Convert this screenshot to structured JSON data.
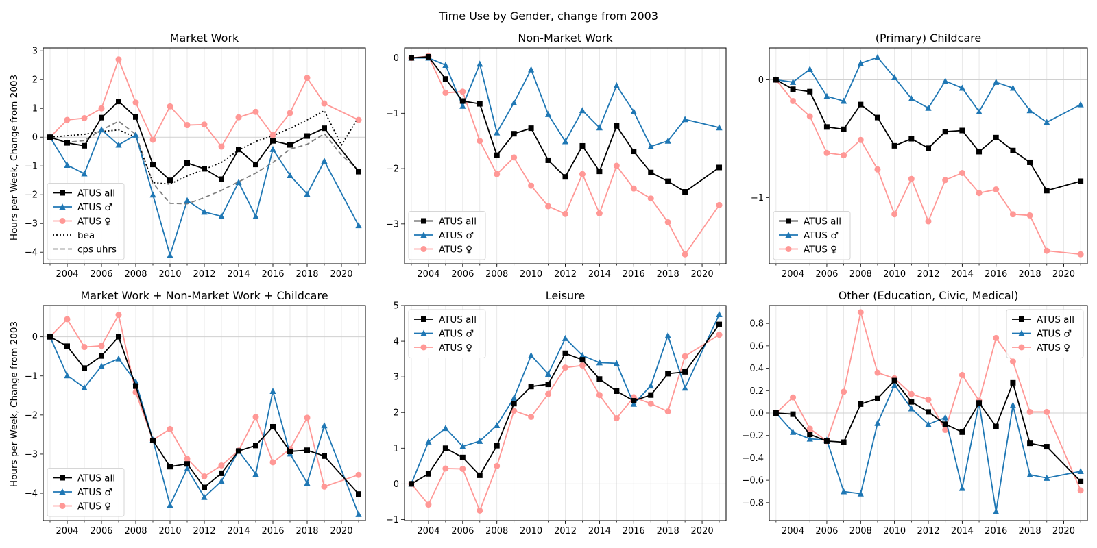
{
  "suptitle": "Time Use by Gender, change from 2003",
  "ylabel": "Hours per Week, Change from 2003",
  "colors": {
    "all": "#000000",
    "men": "#1f77b4",
    "women": "#ff9896",
    "bea": "#000000",
    "cps": "#7f7f7f"
  },
  "chart_data": [
    {
      "type": "line",
      "title": "Market Work",
      "xlim": [
        2002.6,
        2021.4
      ],
      "ylim": [
        -4.4,
        3.1
      ],
      "xticks": [
        2004,
        2006,
        2008,
        2010,
        2012,
        2014,
        2016,
        2018,
        2020
      ],
      "yticks": [
        -4,
        -3,
        -2,
        -1,
        0,
        1,
        2,
        3
      ],
      "legend": "lower-left",
      "x": [
        2003,
        2004,
        2005,
        2006,
        2007,
        2008,
        2009,
        2010,
        2011,
        2012,
        2013,
        2014,
        2015,
        2016,
        2017,
        2018,
        2019,
        2021
      ],
      "series": [
        {
          "name": "ATUS all",
          "style": "all",
          "values": [
            0,
            -0.2,
            -0.3,
            0.68,
            1.24,
            0.7,
            -0.95,
            -1.5,
            -0.9,
            -1.1,
            -1.46,
            -0.43,
            -0.95,
            -0.13,
            -0.27,
            0.04,
            0.31,
            -1.2
          ]
        },
        {
          "name": "ATUS ♂",
          "style": "men",
          "values": [
            0,
            -0.97,
            -1.27,
            0.26,
            -0.27,
            0.08,
            -2.0,
            -4.1,
            -2.2,
            -2.6,
            -2.75,
            -1.57,
            -2.75,
            -0.42,
            -1.33,
            -1.98,
            -0.83,
            -3.07
          ]
        },
        {
          "name": "ATUS ♀",
          "style": "women",
          "values": [
            0,
            0.6,
            0.66,
            1.0,
            2.7,
            1.2,
            -0.09,
            1.07,
            0.42,
            0.44,
            -0.33,
            0.69,
            0.88,
            0.07,
            0.84,
            2.06,
            1.17,
            0.6
          ]
        },
        {
          "name": "bea",
          "style": "bea",
          "x": [
            2003,
            2004,
            2005,
            2006,
            2007,
            2008,
            2009,
            2010,
            2011,
            2012,
            2013,
            2014,
            2015,
            2016,
            2017,
            2018,
            2019,
            2020,
            2021
          ],
          "values": [
            0,
            0.05,
            0.1,
            0.2,
            0.25,
            0.0,
            -1.58,
            -1.63,
            -1.35,
            -1.12,
            -0.88,
            -0.45,
            -0.15,
            0.05,
            0.3,
            0.6,
            0.92,
            -0.28,
            0.7
          ]
        },
        {
          "name": "cps uhrs",
          "style": "cps",
          "x": [
            2003,
            2004,
            2005,
            2006,
            2007,
            2008,
            2009,
            2010,
            2011,
            2012,
            2013,
            2014,
            2015,
            2016,
            2017,
            2018,
            2019,
            2020,
            2021
          ],
          "values": [
            0,
            -0.18,
            -0.12,
            0.25,
            0.55,
            0.1,
            -1.6,
            -2.3,
            -2.32,
            -2.1,
            -1.85,
            -1.55,
            -1.25,
            -0.88,
            -0.42,
            -0.25,
            0.12,
            -0.62,
            -1.15
          ]
        }
      ]
    },
    {
      "type": "line",
      "title": "Non-Market Work",
      "xlim": [
        2002.6,
        2021.4
      ],
      "ylim": [
        -3.72,
        0.18
      ],
      "xticks": [
        2004,
        2006,
        2008,
        2010,
        2012,
        2014,
        2016,
        2018,
        2020
      ],
      "yticks": [
        -3,
        -2,
        -1,
        0
      ],
      "legend": "lower-left",
      "x": [
        2003,
        2004,
        2005,
        2006,
        2007,
        2008,
        2009,
        2010,
        2011,
        2012,
        2013,
        2014,
        2015,
        2016,
        2017,
        2018,
        2019,
        2021
      ],
      "series": [
        {
          "name": "ATUS all",
          "style": "all",
          "values": [
            0,
            0.02,
            -0.38,
            -0.78,
            -0.83,
            -1.76,
            -1.37,
            -1.27,
            -1.85,
            -2.15,
            -1.59,
            -2.05,
            -1.23,
            -1.69,
            -2.07,
            -2.23,
            -2.42,
            -1.98
          ]
        },
        {
          "name": "ATUS ♂",
          "style": "men",
          "values": [
            0,
            0.0,
            -0.13,
            -0.87,
            -0.11,
            -1.35,
            -0.81,
            -0.21,
            -1.02,
            -1.51,
            -0.95,
            -1.26,
            -0.5,
            -0.97,
            -1.6,
            -1.5,
            -1.11,
            -1.26
          ]
        },
        {
          "name": "ATUS ♀",
          "style": "women",
          "values": [
            0,
            0.03,
            -0.63,
            -0.61,
            -1.5,
            -2.1,
            -1.8,
            -2.31,
            -2.68,
            -2.82,
            -2.1,
            -2.81,
            -1.95,
            -2.36,
            -2.54,
            -2.97,
            -3.55,
            -2.66
          ]
        }
      ]
    },
    {
      "type": "line",
      "title": "(Primary) Childcare",
      "xlim": [
        2002.6,
        2021.4
      ],
      "ylim": [
        -1.56,
        0.27
      ],
      "xticks": [
        2004,
        2006,
        2008,
        2010,
        2012,
        2014,
        2016,
        2018,
        2020
      ],
      "yticks": [
        -1,
        0
      ],
      "legend": "lower-left",
      "x": [
        2003,
        2004,
        2005,
        2006,
        2007,
        2008,
        2009,
        2010,
        2011,
        2012,
        2013,
        2014,
        2015,
        2016,
        2017,
        2018,
        2019,
        2021
      ],
      "series": [
        {
          "name": "ATUS all",
          "style": "all",
          "values": [
            0,
            -0.08,
            -0.1,
            -0.4,
            -0.42,
            -0.21,
            -0.32,
            -0.56,
            -0.5,
            -0.58,
            -0.44,
            -0.43,
            -0.61,
            -0.49,
            -0.6,
            -0.7,
            -0.94,
            -0.86
          ]
        },
        {
          "name": "ATUS ♂",
          "style": "men",
          "values": [
            0,
            -0.02,
            0.09,
            -0.14,
            -0.18,
            0.14,
            0.19,
            0.02,
            -0.16,
            -0.24,
            -0.01,
            -0.07,
            -0.27,
            -0.02,
            -0.07,
            -0.26,
            -0.36,
            -0.21
          ]
        },
        {
          "name": "ATUS ♀",
          "style": "women",
          "values": [
            0,
            -0.18,
            -0.31,
            -0.62,
            -0.64,
            -0.51,
            -0.76,
            -1.14,
            -0.84,
            -1.2,
            -0.85,
            -0.79,
            -0.96,
            -0.93,
            -1.14,
            -1.15,
            -1.45,
            -1.48
          ]
        }
      ]
    },
    {
      "type": "line",
      "title": "Market Work + Non-Market Work + Childcare",
      "xlim": [
        2002.6,
        2021.4
      ],
      "ylim": [
        -4.7,
        0.8
      ],
      "xticks": [
        2004,
        2006,
        2008,
        2010,
        2012,
        2014,
        2016,
        2018,
        2020
      ],
      "yticks": [
        -4,
        -3,
        -2,
        -1,
        0
      ],
      "legend": "lower-left",
      "x": [
        2003,
        2004,
        2005,
        2006,
        2007,
        2008,
        2009,
        2010,
        2011,
        2012,
        2013,
        2014,
        2015,
        2016,
        2017,
        2018,
        2019,
        2021
      ],
      "series": [
        {
          "name": "ATUS all",
          "style": "all",
          "values": [
            0,
            -0.24,
            -0.8,
            -0.49,
            0.0,
            -1.26,
            -2.65,
            -3.32,
            -3.25,
            -3.85,
            -3.49,
            -2.92,
            -2.78,
            -2.3,
            -2.93,
            -2.9,
            -3.05,
            -4.02
          ]
        },
        {
          "name": "ATUS ♂",
          "style": "men",
          "values": [
            0,
            -0.99,
            -1.3,
            -0.75,
            -0.56,
            -1.15,
            -2.63,
            -4.3,
            -3.37,
            -4.1,
            -3.69,
            -2.92,
            -3.51,
            -1.39,
            -2.99,
            -3.74,
            -2.27,
            -4.54
          ]
        },
        {
          "name": "ATUS ♀",
          "style": "women",
          "values": [
            0,
            0.45,
            -0.26,
            -0.23,
            0.56,
            -1.42,
            -2.64,
            -2.36,
            -3.12,
            -3.57,
            -3.29,
            -2.91,
            -2.05,
            -3.21,
            -2.87,
            -2.07,
            -3.83,
            -3.53
          ]
        }
      ]
    },
    {
      "type": "line",
      "title": "Leisure",
      "xlim": [
        2002.6,
        2021.4
      ],
      "ylim": [
        -1.03,
        5.0
      ],
      "xticks": [
        2004,
        2006,
        2008,
        2010,
        2012,
        2014,
        2016,
        2018,
        2020
      ],
      "yticks": [
        -1,
        0,
        1,
        2,
        3,
        4,
        5
      ],
      "legend": "top-left",
      "x": [
        2003,
        2004,
        2005,
        2006,
        2007,
        2008,
        2009,
        2010,
        2011,
        2012,
        2013,
        2014,
        2015,
        2016,
        2017,
        2018,
        2019,
        2021
      ],
      "series": [
        {
          "name": "ATUS all",
          "style": "all",
          "values": [
            0,
            0.28,
            1.0,
            0.74,
            0.24,
            1.07,
            2.25,
            2.73,
            2.79,
            3.66,
            3.48,
            2.94,
            2.6,
            2.33,
            2.49,
            3.09,
            3.14,
            4.47
          ]
        },
        {
          "name": "ATUS ♂",
          "style": "men",
          "values": [
            0,
            1.18,
            1.56,
            1.05,
            1.2,
            1.64,
            2.41,
            3.6,
            3.08,
            4.08,
            3.6,
            3.4,
            3.38,
            2.24,
            2.75,
            4.16,
            2.69,
            4.75
          ]
        },
        {
          "name": "ATUS ♀",
          "style": "women",
          "values": [
            0,
            -0.58,
            0.43,
            0.42,
            -0.75,
            0.5,
            2.05,
            1.88,
            2.52,
            3.26,
            3.32,
            2.49,
            1.84,
            2.43,
            2.25,
            2.03,
            3.58,
            4.18
          ]
        }
      ]
    },
    {
      "type": "line",
      "title": "Other (Education, Civic, Medical)",
      "xlim": [
        2002.6,
        2021.4
      ],
      "ylim": [
        -0.96,
        0.96
      ],
      "xticks": [
        2004,
        2006,
        2008,
        2010,
        2012,
        2014,
        2016,
        2018,
        2020
      ],
      "yticks": [
        -0.8,
        -0.6,
        -0.4,
        -0.2,
        0.0,
        0.2,
        0.4,
        0.6,
        0.8
      ],
      "ytick_decimals": 1,
      "legend": "top-right",
      "x": [
        2003,
        2004,
        2005,
        2006,
        2007,
        2008,
        2009,
        2010,
        2011,
        2012,
        2013,
        2014,
        2015,
        2016,
        2017,
        2018,
        2019,
        2021
      ],
      "series": [
        {
          "name": "ATUS all",
          "style": "all",
          "values": [
            0,
            -0.01,
            -0.19,
            -0.25,
            -0.26,
            0.08,
            0.13,
            0.29,
            0.1,
            0.01,
            -0.1,
            -0.17,
            0.09,
            -0.12,
            0.27,
            -0.27,
            -0.3,
            -0.61
          ]
        },
        {
          "name": "ATUS ♂",
          "style": "men",
          "values": [
            0,
            -0.17,
            -0.23,
            -0.24,
            -0.7,
            -0.72,
            -0.09,
            0.25,
            0.04,
            -0.1,
            -0.04,
            -0.67,
            0.09,
            -0.88,
            0.07,
            -0.55,
            -0.58,
            -0.52
          ]
        },
        {
          "name": "ATUS ♀",
          "style": "women",
          "values": [
            0,
            0.14,
            -0.14,
            -0.25,
            0.19,
            0.9,
            0.36,
            0.31,
            0.17,
            0.12,
            -0.15,
            0.34,
            0.11,
            0.67,
            0.46,
            0.01,
            0.01,
            -0.69
          ]
        }
      ]
    }
  ]
}
